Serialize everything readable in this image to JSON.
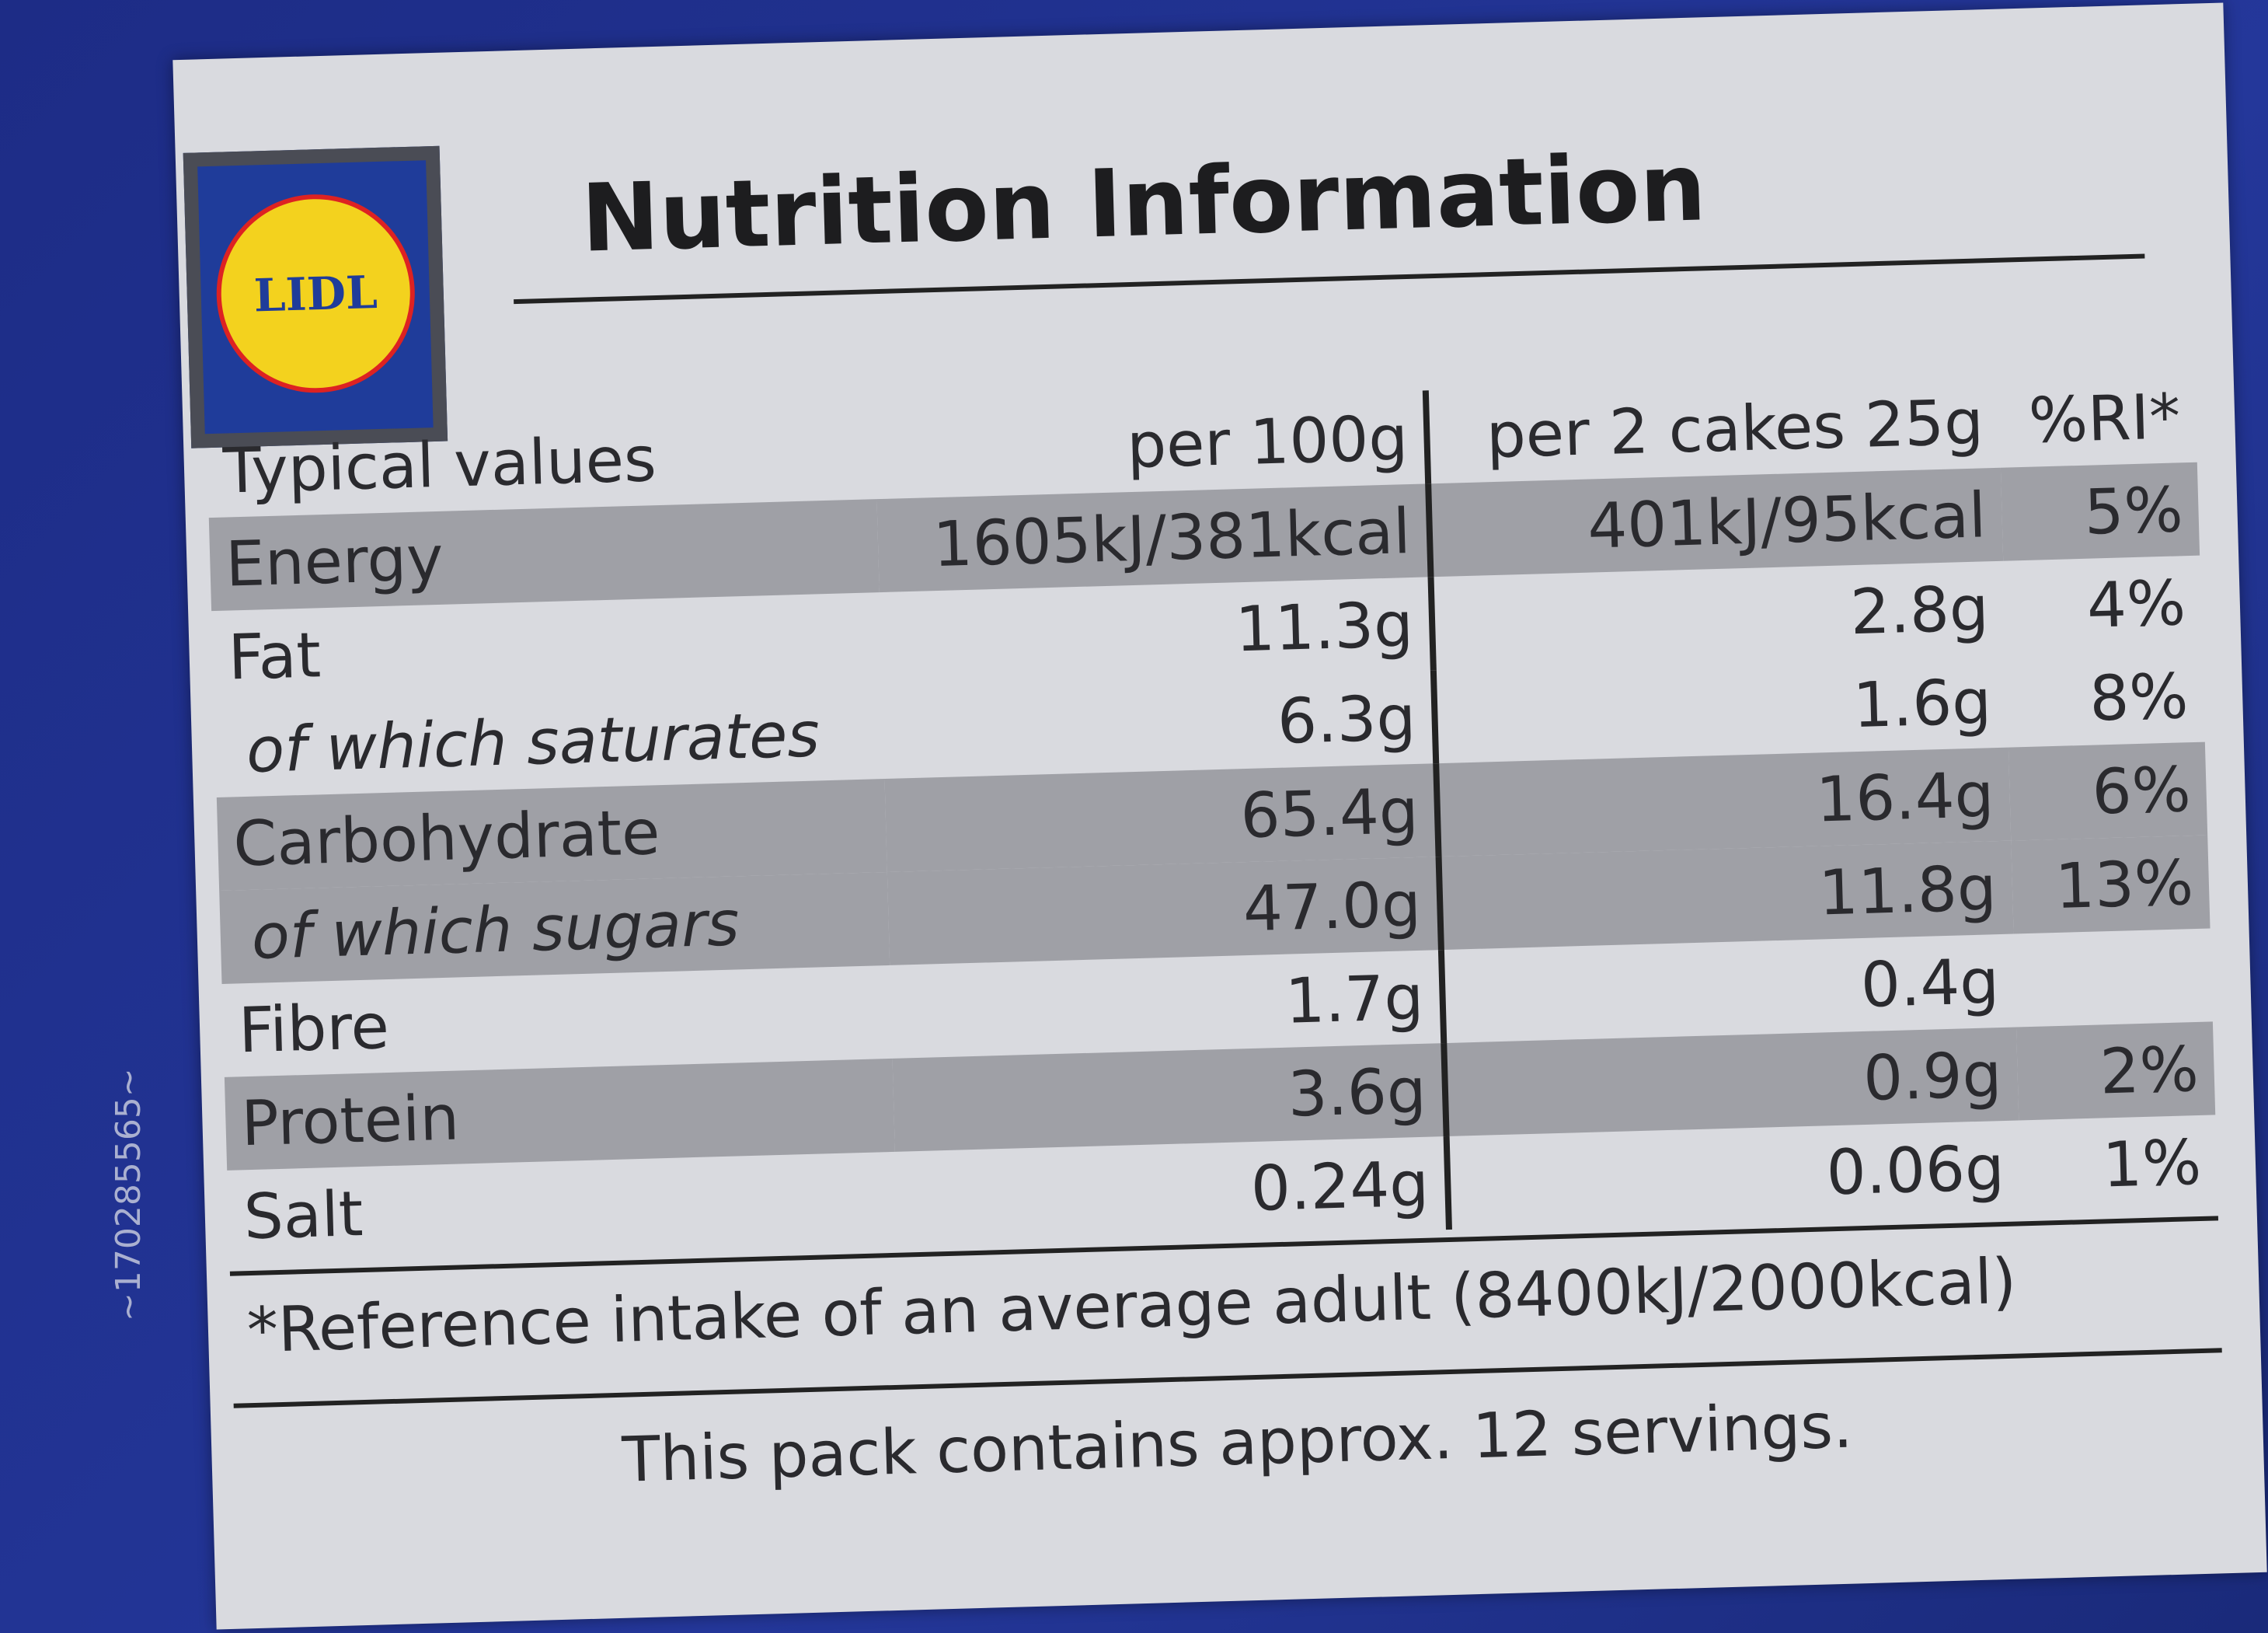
{
  "header": {
    "logo": "LIDL",
    "title": "Nutrition Information"
  },
  "table": {
    "columns": [
      "Typical values",
      "per 100g",
      "per 2 cakes 25g",
      "%RI*"
    ],
    "rows": [
      [
        "Energy",
        "1605kJ/381kcal",
        "401kJ/95kcal",
        "5%"
      ],
      [
        "Fat",
        "11.3g",
        "2.8g",
        "4%"
      ],
      [
        "of which saturates",
        "6.3g",
        "1.6g",
        "8%"
      ],
      [
        "Carbohydrate",
        "65.4g",
        "16.4g",
        "6%"
      ],
      [
        "of which sugars",
        "47.0g",
        "11.8g",
        "13%"
      ],
      [
        "Fibre",
        "1.7g",
        "0.4g",
        null
      ],
      [
        "Protein",
        "3.6g",
        "0.9g",
        "2%"
      ],
      [
        "Salt",
        "0.24g",
        "0.06g",
        "1%"
      ]
    ]
  },
  "footnote": "*Reference intake of an average adult (8400kJ/2000kcal)",
  "servings": "This pack contains approx. 12 servings.",
  "side_code": "~170285565~"
}
